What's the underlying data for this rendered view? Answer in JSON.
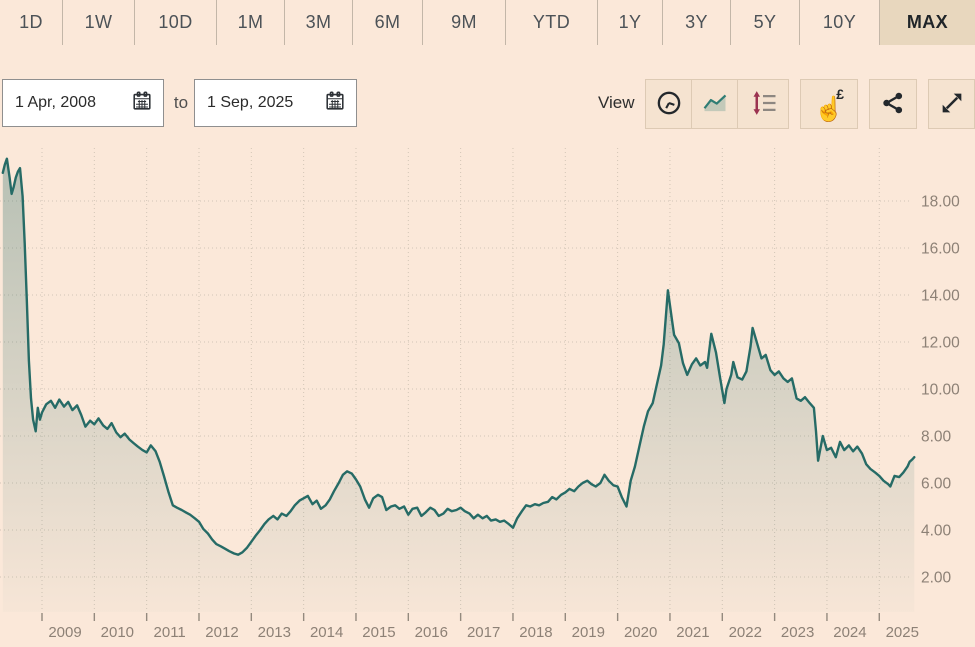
{
  "toolbar": {
    "range_tabs": [
      {
        "label": "1D"
      },
      {
        "label": "1W"
      },
      {
        "label": "10D"
      },
      {
        "label": "1M"
      },
      {
        "label": "3M"
      },
      {
        "label": "6M"
      },
      {
        "label": "9M"
      },
      {
        "label": "YTD"
      },
      {
        "label": "1Y"
      },
      {
        "label": "3Y"
      },
      {
        "label": "5Y"
      },
      {
        "label": "10Y"
      },
      {
        "label": "MAX",
        "active": true
      }
    ]
  },
  "date_range": {
    "from_value": "1 Apr, 2008",
    "to_label": "to",
    "to_value": "1 Sep, 2025",
    "from_icon": "calendar-icon",
    "to_icon": "calendar-icon"
  },
  "view_controls": {
    "label": "View",
    "hand_glyph": "☝",
    "currency_symbol": "£",
    "buttons": [
      {
        "name": "time-interval",
        "icon": "clock-icon"
      },
      {
        "name": "line-chart-view",
        "icon": "line-chart-icon",
        "active": true
      },
      {
        "name": "value-change-view",
        "icon": "value-arrows-icon"
      },
      {
        "name": "price-tap",
        "icon": "hand-pound-icon"
      },
      {
        "name": "share",
        "icon": "share-icon"
      },
      {
        "name": "fullscreen",
        "icon": "expand-icon"
      }
    ]
  },
  "colors": {
    "page_bg": "#fbe8d9",
    "tab_active_bg": "#e8d7be",
    "button_bg": "#f5e3d0",
    "grid": "#d2c5b6",
    "axis_text": "#8d8176",
    "line": "#266b66",
    "value_arrow": "#9b3350"
  },
  "chart_data": {
    "type": "area",
    "title": "",
    "xlabel": "",
    "ylabel": "",
    "legend": false,
    "grid": true,
    "y_ticks": [
      2,
      4,
      6,
      8,
      10,
      12,
      14,
      16,
      18
    ],
    "x_ticks": [
      2009,
      2010,
      2011,
      2012,
      2013,
      2014,
      2015,
      2016,
      2017,
      2018,
      2019,
      2020,
      2021,
      2022,
      2023,
      2024,
      2025
    ],
    "xlim": [
      2008.2,
      2025.9
    ],
    "ylim": [
      0.6,
      20.4
    ],
    "line_color": "#266b66",
    "points": [
      [
        2008.25,
        19.2
      ],
      [
        2008.29,
        19.55
      ],
      [
        2008.33,
        19.8
      ],
      [
        2008.38,
        19.0
      ],
      [
        2008.42,
        18.3
      ],
      [
        2008.46,
        18.6
      ],
      [
        2008.5,
        19.0
      ],
      [
        2008.54,
        19.25
      ],
      [
        2008.58,
        19.4
      ],
      [
        2008.63,
        18.2
      ],
      [
        2008.67,
        16.2
      ],
      [
        2008.71,
        13.8
      ],
      [
        2008.75,
        11.2
      ],
      [
        2008.79,
        9.6
      ],
      [
        2008.83,
        8.7
      ],
      [
        2008.88,
        8.2
      ],
      [
        2008.92,
        9.2
      ],
      [
        2008.96,
        8.7
      ],
      [
        2009.0,
        9.0
      ],
      [
        2009.08,
        9.35
      ],
      [
        2009.17,
        9.5
      ],
      [
        2009.25,
        9.2
      ],
      [
        2009.33,
        9.55
      ],
      [
        2009.42,
        9.25
      ],
      [
        2009.5,
        9.45
      ],
      [
        2009.58,
        9.1
      ],
      [
        2009.67,
        9.3
      ],
      [
        2009.75,
        8.9
      ],
      [
        2009.83,
        8.4
      ],
      [
        2009.92,
        8.65
      ],
      [
        2010.0,
        8.5
      ],
      [
        2010.08,
        8.75
      ],
      [
        2010.17,
        8.45
      ],
      [
        2010.25,
        8.3
      ],
      [
        2010.33,
        8.55
      ],
      [
        2010.42,
        8.15
      ],
      [
        2010.5,
        7.95
      ],
      [
        2010.58,
        8.1
      ],
      [
        2010.67,
        7.85
      ],
      [
        2010.75,
        7.7
      ],
      [
        2010.83,
        7.55
      ],
      [
        2010.92,
        7.4
      ],
      [
        2011.0,
        7.3
      ],
      [
        2011.08,
        7.6
      ],
      [
        2011.17,
        7.35
      ],
      [
        2011.25,
        6.9
      ],
      [
        2011.33,
        6.3
      ],
      [
        2011.42,
        5.6
      ],
      [
        2011.5,
        5.05
      ],
      [
        2011.58,
        4.95
      ],
      [
        2011.67,
        4.85
      ],
      [
        2011.75,
        4.75
      ],
      [
        2011.83,
        4.65
      ],
      [
        2011.92,
        4.5
      ],
      [
        2012.0,
        4.35
      ],
      [
        2012.08,
        4.05
      ],
      [
        2012.17,
        3.85
      ],
      [
        2012.25,
        3.6
      ],
      [
        2012.33,
        3.4
      ],
      [
        2012.42,
        3.3
      ],
      [
        2012.5,
        3.2
      ],
      [
        2012.58,
        3.1
      ],
      [
        2012.67,
        3.0
      ],
      [
        2012.75,
        2.95
      ],
      [
        2012.83,
        3.05
      ],
      [
        2012.92,
        3.25
      ],
      [
        2013.0,
        3.5
      ],
      [
        2013.08,
        3.75
      ],
      [
        2013.17,
        4.0
      ],
      [
        2013.25,
        4.25
      ],
      [
        2013.33,
        4.45
      ],
      [
        2013.42,
        4.6
      ],
      [
        2013.5,
        4.45
      ],
      [
        2013.58,
        4.7
      ],
      [
        2013.67,
        4.6
      ],
      [
        2013.75,
        4.8
      ],
      [
        2013.83,
        5.05
      ],
      [
        2013.92,
        5.25
      ],
      [
        2014.0,
        5.35
      ],
      [
        2014.08,
        5.45
      ],
      [
        2014.17,
        5.1
      ],
      [
        2014.25,
        5.25
      ],
      [
        2014.33,
        4.9
      ],
      [
        2014.42,
        5.05
      ],
      [
        2014.5,
        5.3
      ],
      [
        2014.58,
        5.65
      ],
      [
        2014.67,
        6.0
      ],
      [
        2014.75,
        6.35
      ],
      [
        2014.83,
        6.5
      ],
      [
        2014.92,
        6.4
      ],
      [
        2015.0,
        6.15
      ],
      [
        2015.08,
        5.85
      ],
      [
        2015.17,
        5.3
      ],
      [
        2015.25,
        4.95
      ],
      [
        2015.33,
        5.35
      ],
      [
        2015.42,
        5.5
      ],
      [
        2015.5,
        5.4
      ],
      [
        2015.58,
        4.85
      ],
      [
        2015.67,
        5.0
      ],
      [
        2015.75,
        5.05
      ],
      [
        2015.83,
        4.9
      ],
      [
        2015.92,
        5.0
      ],
      [
        2016.0,
        4.65
      ],
      [
        2016.08,
        4.9
      ],
      [
        2016.17,
        4.95
      ],
      [
        2016.25,
        4.6
      ],
      [
        2016.33,
        4.75
      ],
      [
        2016.42,
        4.95
      ],
      [
        2016.5,
        4.85
      ],
      [
        2016.58,
        4.6
      ],
      [
        2016.67,
        4.7
      ],
      [
        2016.75,
        4.9
      ],
      [
        2016.83,
        4.8
      ],
      [
        2016.92,
        4.85
      ],
      [
        2017.0,
        4.95
      ],
      [
        2017.08,
        4.8
      ],
      [
        2017.17,
        4.7
      ],
      [
        2017.25,
        4.5
      ],
      [
        2017.33,
        4.65
      ],
      [
        2017.42,
        4.5
      ],
      [
        2017.5,
        4.6
      ],
      [
        2017.58,
        4.4
      ],
      [
        2017.67,
        4.45
      ],
      [
        2017.75,
        4.35
      ],
      [
        2017.83,
        4.4
      ],
      [
        2017.92,
        4.25
      ],
      [
        2018.0,
        4.1
      ],
      [
        2018.08,
        4.5
      ],
      [
        2018.17,
        4.8
      ],
      [
        2018.25,
        5.05
      ],
      [
        2018.33,
        5.0
      ],
      [
        2018.42,
        5.1
      ],
      [
        2018.5,
        5.05
      ],
      [
        2018.58,
        5.15
      ],
      [
        2018.67,
        5.2
      ],
      [
        2018.75,
        5.4
      ],
      [
        2018.83,
        5.3
      ],
      [
        2018.92,
        5.5
      ],
      [
        2019.0,
        5.6
      ],
      [
        2019.08,
        5.75
      ],
      [
        2019.17,
        5.65
      ],
      [
        2019.25,
        5.85
      ],
      [
        2019.33,
        6.0
      ],
      [
        2019.42,
        6.1
      ],
      [
        2019.5,
        5.95
      ],
      [
        2019.58,
        5.85
      ],
      [
        2019.67,
        6.0
      ],
      [
        2019.75,
        6.35
      ],
      [
        2019.83,
        6.1
      ],
      [
        2019.92,
        5.9
      ],
      [
        2020.0,
        5.85
      ],
      [
        2020.08,
        5.4
      ],
      [
        2020.17,
        5.0
      ],
      [
        2020.25,
        6.1
      ],
      [
        2020.33,
        6.7
      ],
      [
        2020.42,
        7.6
      ],
      [
        2020.5,
        8.4
      ],
      [
        2020.58,
        9.05
      ],
      [
        2020.67,
        9.4
      ],
      [
        2020.75,
        10.2
      ],
      [
        2020.83,
        11.0
      ],
      [
        2020.88,
        11.9
      ],
      [
        2020.96,
        14.2
      ],
      [
        2021.04,
        12.9
      ],
      [
        2021.08,
        12.3
      ],
      [
        2021.17,
        11.95
      ],
      [
        2021.25,
        11.1
      ],
      [
        2021.33,
        10.6
      ],
      [
        2021.42,
        11.05
      ],
      [
        2021.5,
        11.3
      ],
      [
        2021.58,
        11.0
      ],
      [
        2021.67,
        11.15
      ],
      [
        2021.71,
        10.9
      ],
      [
        2021.79,
        12.35
      ],
      [
        2021.88,
        11.55
      ],
      [
        2021.96,
        10.45
      ],
      [
        2022.04,
        9.4
      ],
      [
        2022.08,
        10.0
      ],
      [
        2022.17,
        10.6
      ],
      [
        2022.21,
        11.15
      ],
      [
        2022.29,
        10.5
      ],
      [
        2022.38,
        10.4
      ],
      [
        2022.46,
        10.75
      ],
      [
        2022.54,
        11.8
      ],
      [
        2022.58,
        12.6
      ],
      [
        2022.67,
        11.9
      ],
      [
        2022.75,
        11.3
      ],
      [
        2022.83,
        11.45
      ],
      [
        2022.92,
        10.8
      ],
      [
        2023.0,
        10.6
      ],
      [
        2023.08,
        10.75
      ],
      [
        2023.17,
        10.45
      ],
      [
        2023.25,
        10.3
      ],
      [
        2023.33,
        10.45
      ],
      [
        2023.42,
        9.6
      ],
      [
        2023.5,
        9.5
      ],
      [
        2023.58,
        9.65
      ],
      [
        2023.67,
        9.4
      ],
      [
        2023.75,
        9.2
      ],
      [
        2023.79,
        8.2
      ],
      [
        2023.83,
        6.95
      ],
      [
        2023.92,
        8.0
      ],
      [
        2024.0,
        7.4
      ],
      [
        2024.08,
        7.5
      ],
      [
        2024.17,
        7.1
      ],
      [
        2024.25,
        7.75
      ],
      [
        2024.33,
        7.4
      ],
      [
        2024.42,
        7.6
      ],
      [
        2024.5,
        7.35
      ],
      [
        2024.58,
        7.55
      ],
      [
        2024.67,
        7.25
      ],
      [
        2024.75,
        6.8
      ],
      [
        2024.83,
        6.6
      ],
      [
        2024.92,
        6.45
      ],
      [
        2025.0,
        6.3
      ],
      [
        2025.08,
        6.1
      ],
      [
        2025.17,
        5.95
      ],
      [
        2025.21,
        5.85
      ],
      [
        2025.29,
        6.3
      ],
      [
        2025.38,
        6.25
      ],
      [
        2025.46,
        6.45
      ],
      [
        2025.54,
        6.7
      ],
      [
        2025.58,
        6.9
      ],
      [
        2025.63,
        7.0
      ],
      [
        2025.67,
        7.1
      ]
    ]
  }
}
